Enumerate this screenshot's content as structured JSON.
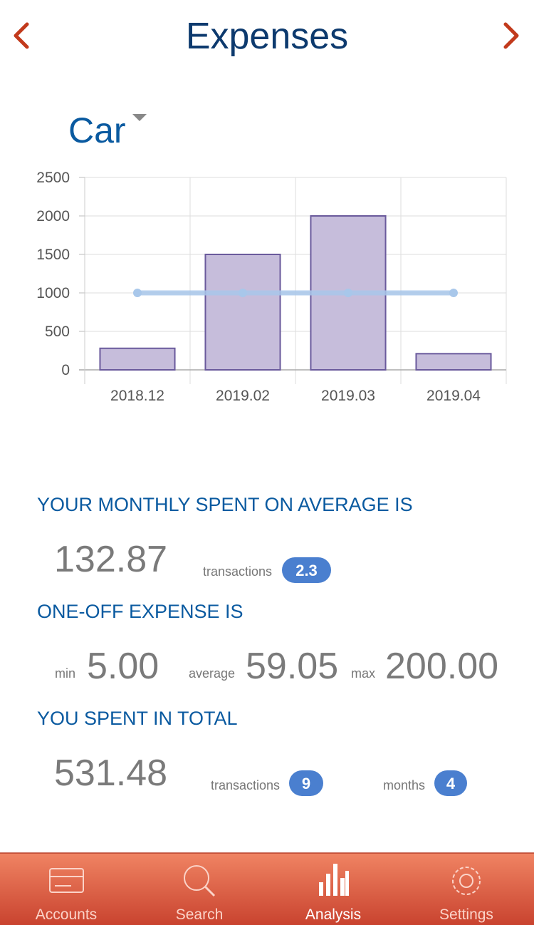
{
  "header": {
    "title": "Expenses"
  },
  "category": "Car",
  "chart_data": {
    "type": "bar",
    "categories": [
      "2018.12",
      "2019.02",
      "2019.03",
      "2019.04"
    ],
    "series": [
      {
        "type": "bar",
        "color": "#c6bddb",
        "edge_color": "#6a5a9c",
        "values": [
          280,
          1500,
          2000,
          210
        ]
      },
      {
        "type": "line",
        "color": "#a8c7ea",
        "values": [
          1000,
          1000,
          1000,
          1000
        ]
      }
    ],
    "ylim": [
      0,
      2500
    ],
    "yticks": [
      0,
      500,
      1000,
      1500,
      2000,
      2500
    ],
    "grid": true
  },
  "monthly": {
    "heading": "YOUR MONTHLY SPENT ON AVERAGE IS",
    "value": "132.87",
    "transactions_label": "transactions",
    "transactions": "2.3"
  },
  "one_off": {
    "heading": "ONE-OFF EXPENSE IS",
    "min_label": "min",
    "min": "5.00",
    "average_label": "average",
    "average": "59.05",
    "max_label": "max",
    "max": "200.00"
  },
  "total": {
    "heading": "YOU SPENT IN TOTAL",
    "value": "531.48",
    "transactions_label": "transactions",
    "transactions": "9",
    "months_label": "months",
    "months": "4"
  },
  "tabs": [
    "Accounts",
    "Search",
    "Analysis",
    "Settings"
  ]
}
